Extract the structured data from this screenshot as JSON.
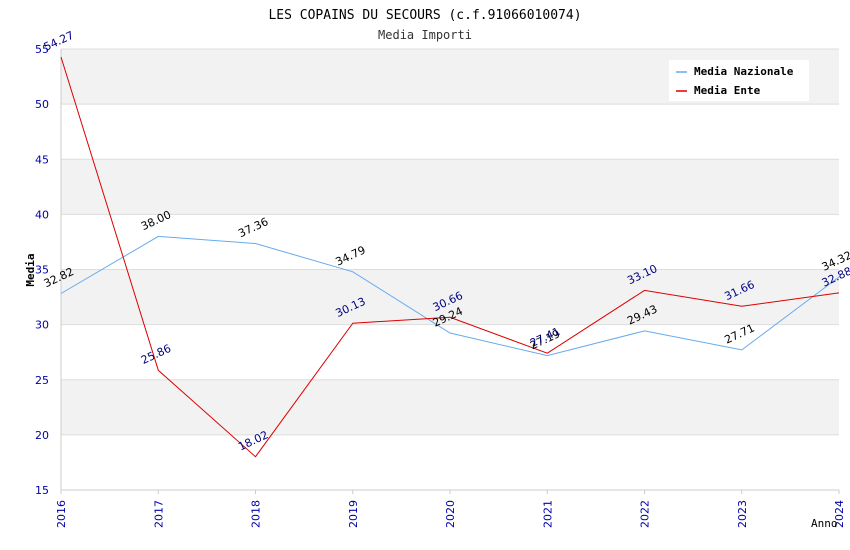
{
  "chart_data": {
    "type": "line",
    "title": "LES COPAINS DU SECOURS (c.f.91066010074)",
    "subtitle": "Media Importi",
    "xlabel": "Anno",
    "ylabel": "Media",
    "categories": [
      "2016",
      "2017",
      "2018",
      "2019",
      "2020",
      "2021",
      "2022",
      "2023",
      "2024"
    ],
    "ylim": [
      15,
      55
    ],
    "yticks": [
      "15",
      "20",
      "25",
      "30",
      "35",
      "40",
      "45",
      "50",
      "55"
    ],
    "grid": true,
    "legend_position": "top-right",
    "series": [
      {
        "name": "Media Nazionale",
        "color": "#66aaee",
        "label_color": "#000000",
        "values": [
          32.82,
          38.0,
          37.36,
          34.79,
          29.24,
          27.19,
          29.43,
          27.71,
          34.32
        ],
        "labels": [
          "32.82",
          "38.00",
          "37.36",
          "34.79",
          "29.24",
          "27.19",
          "29.43",
          "27.71",
          "34.32"
        ]
      },
      {
        "name": "Media Ente",
        "color": "#dd0000",
        "label_color": "#000080",
        "values": [
          54.27,
          25.86,
          18.02,
          30.13,
          30.66,
          27.41,
          33.1,
          31.66,
          32.88
        ],
        "labels": [
          "54.27",
          "25.86",
          "18.02",
          "30.13",
          "30.66",
          "27.41",
          "33.10",
          "31.66",
          "32.88"
        ]
      }
    ]
  }
}
